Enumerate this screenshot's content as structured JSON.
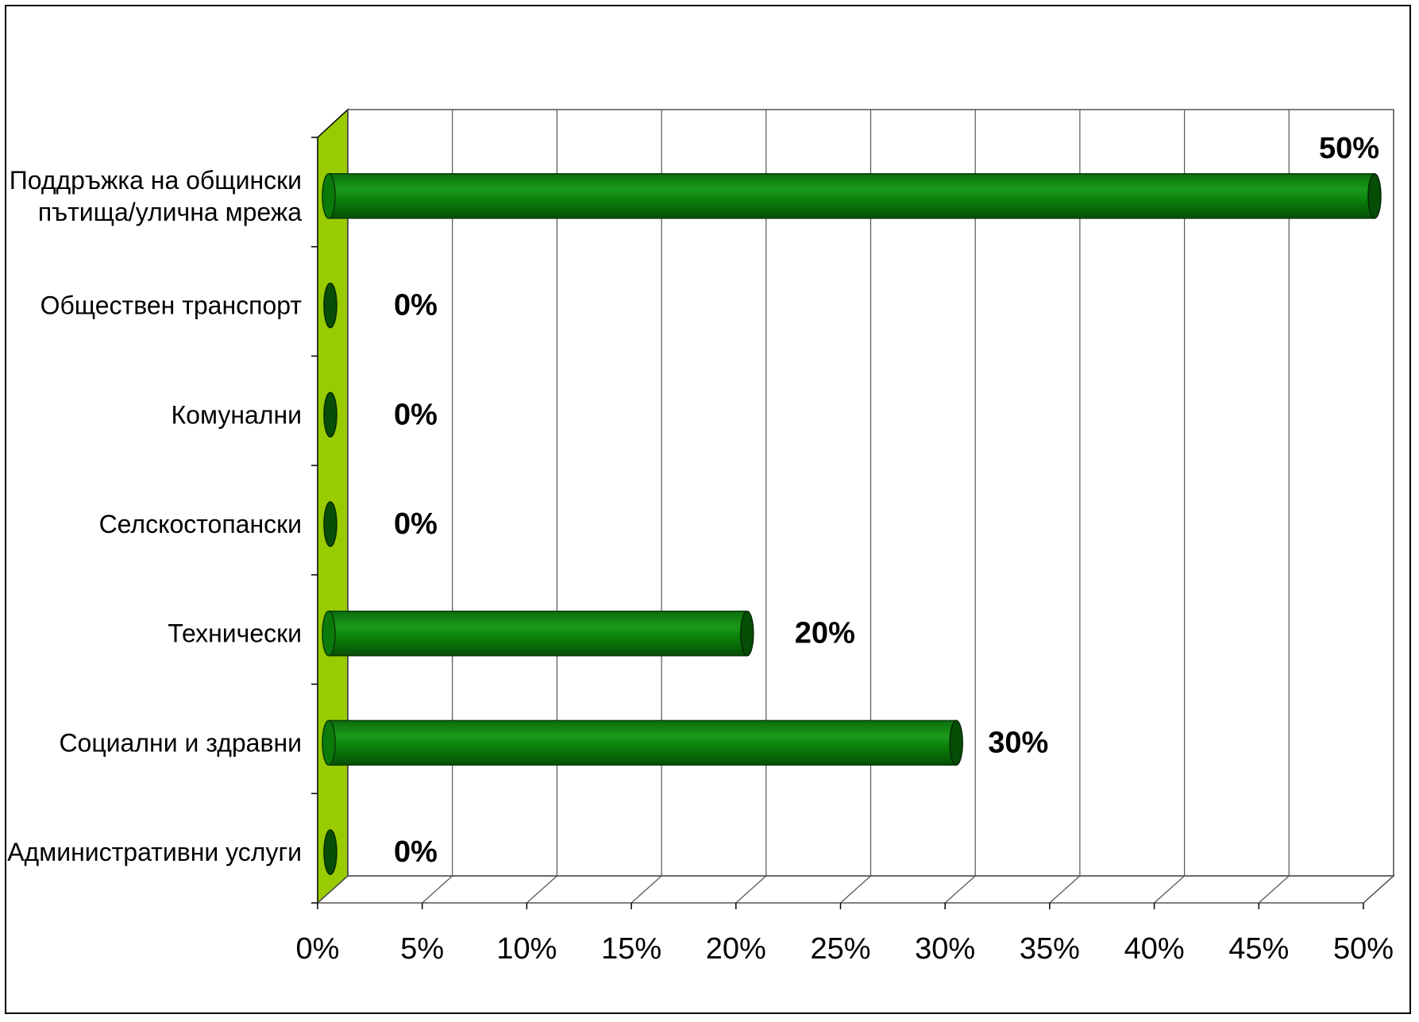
{
  "chart_data": {
    "type": "bar",
    "orientation": "horizontal",
    "style": "3d-cylinder",
    "categories": [
      "Поддръжка на общински пътища/улична мрежа",
      "Обществен транспорт",
      "Комунални",
      "Селскостопански",
      "Технически",
      "Социални и здравни",
      "Административни услуги"
    ],
    "category_lines": [
      [
        "Поддръжка на общински",
        "пътища/улична мрежа"
      ],
      [
        "Обществен транспорт"
      ],
      [
        "Комунални"
      ],
      [
        "Селскостопански"
      ],
      [
        "Технически"
      ],
      [
        "Социални и здравни"
      ],
      [
        "Административни услуги"
      ]
    ],
    "values": [
      50,
      0,
      0,
      0,
      20,
      30,
      0
    ],
    "data_labels": [
      "50%",
      "0%",
      "0%",
      "0%",
      "20%",
      "30%",
      "0%"
    ],
    "x_ticks": [
      "0%",
      "5%",
      "10%",
      "15%",
      "20%",
      "25%",
      "30%",
      "35%",
      "40%",
      "45%",
      "50%"
    ],
    "xlim": [
      0,
      50
    ],
    "grid": true,
    "legend": "none",
    "title": "",
    "xlabel": "",
    "ylabel": "",
    "colors": {
      "bar": "#0a7a0a",
      "bar_dark": "#064d06",
      "bar_light": "#1fa31f",
      "wall_side": "#99cc00",
      "grid": "#555555"
    }
  }
}
